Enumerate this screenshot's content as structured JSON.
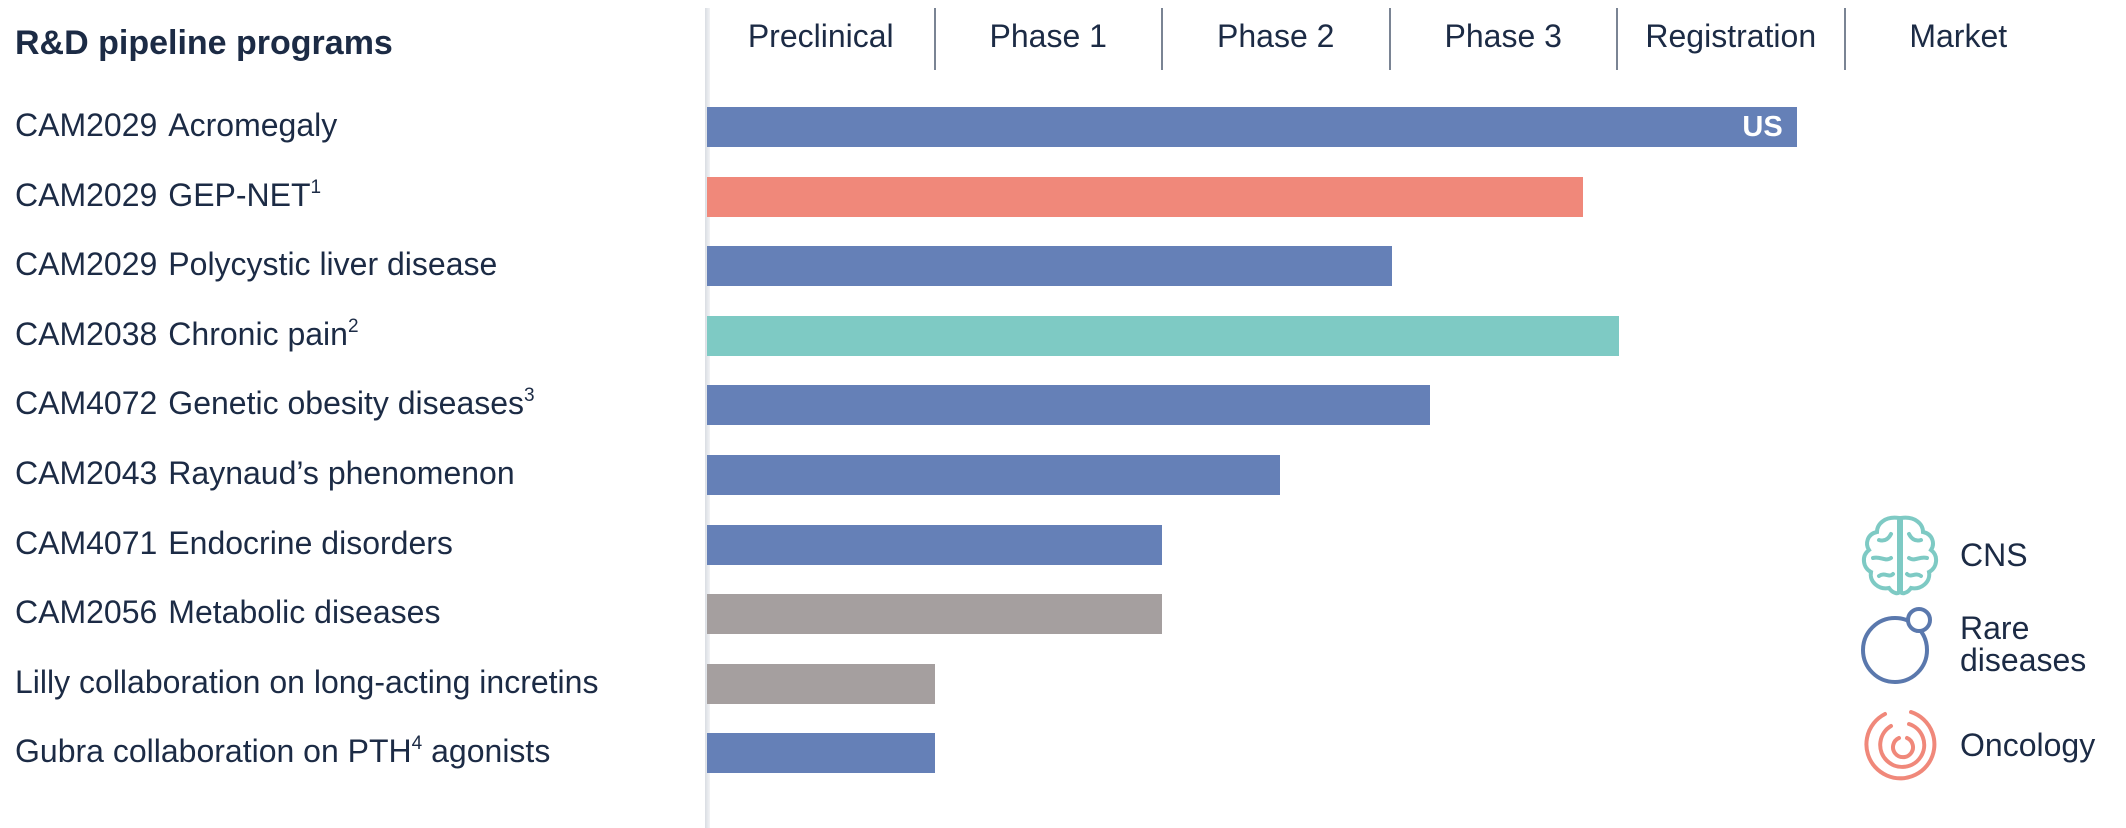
{
  "chart_data": {
    "type": "bar",
    "orientation": "horizontal",
    "title": "R&D pipeline programs",
    "stages": [
      "Preclinical",
      "Phase 1",
      "Phase 2",
      "Phase 3",
      "Registration",
      "Market"
    ],
    "programs": [
      {
        "code": "CAM2029",
        "name": "Acromegaly",
        "sup": "",
        "progress_stages": 4.79,
        "area": "Rare diseases",
        "color": "#6580b7",
        "bar_label": "US"
      },
      {
        "code": "CAM2029",
        "name": "GEP-NET",
        "sup": "1",
        "progress_stages": 3.85,
        "area": "Oncology",
        "color": "#f0887a",
        "bar_label": ""
      },
      {
        "code": "CAM2029",
        "name": "Polycystic liver disease",
        "sup": "",
        "progress_stages": 3.01,
        "area": "Rare diseases",
        "color": "#6580b7",
        "bar_label": ""
      },
      {
        "code": "CAM2038",
        "name": "Chronic pain",
        "sup": "2",
        "progress_stages": 4.01,
        "area": "CNS",
        "color": "#7ecac4",
        "bar_label": ""
      },
      {
        "code": "CAM4072",
        "name": "Genetic obesity diseases",
        "sup": "3",
        "progress_stages": 3.18,
        "area": "Rare diseases",
        "color": "#6580b7",
        "bar_label": ""
      },
      {
        "code": "CAM2043",
        "name": "Raynaud’s phenomenon",
        "sup": "",
        "progress_stages": 2.52,
        "area": "Rare diseases",
        "color": "#6580b7",
        "bar_label": ""
      },
      {
        "code": "CAM4071",
        "name": "Endocrine disorders",
        "sup": "",
        "progress_stages": 2.0,
        "area": "Rare diseases",
        "color": "#6580b7",
        "bar_label": ""
      },
      {
        "code": "CAM2056",
        "name": "Metabolic diseases",
        "sup": "",
        "progress_stages": 2.0,
        "area": "",
        "color": "#a59f9f",
        "bar_label": ""
      },
      {
        "code": "",
        "name": "Lilly collaboration on long-acting incretins",
        "sup": "",
        "progress_stages": 1.0,
        "area": "",
        "color": "#a59f9f",
        "bar_label": ""
      },
      {
        "code": "",
        "name": "Gubra collaboration on PTH",
        "sup": "4",
        "name_suffix": " agonists",
        "progress_stages": 1.0,
        "area": "Rare diseases",
        "color": "#6580b7",
        "bar_label": ""
      }
    ],
    "legend": [
      {
        "label": "CNS",
        "icon": "brain-icon",
        "color": "#7ecac4"
      },
      {
        "label": "Rare\ndiseases",
        "icon": "rare-diseases-icon",
        "color": "#5a78ad"
      },
      {
        "label": "Oncology",
        "icon": "oncology-icon",
        "color": "#f0887a"
      }
    ],
    "legend_position": "bottom-right",
    "grid": false
  }
}
